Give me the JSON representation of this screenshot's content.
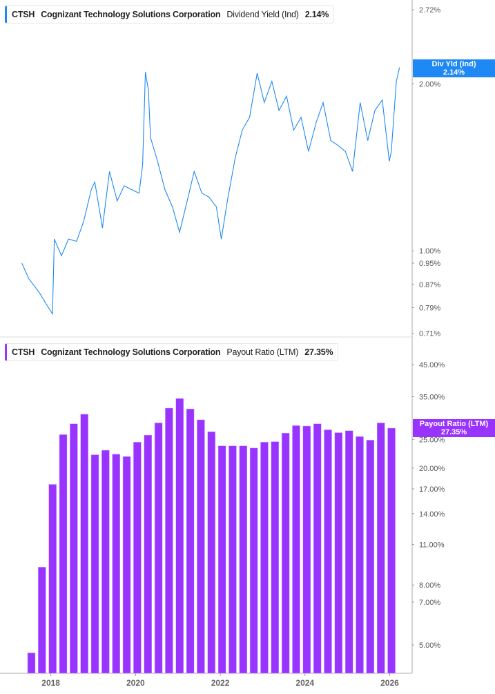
{
  "colors": {
    "yield_line": "#1e88f5",
    "payout_bar": "#9933ff",
    "axis": "#aaaaaa"
  },
  "chart_data": [
    {
      "type": "line",
      "legend": {
        "ticker": "CTSH",
        "company": "Cognizant Technology Solutions Corporation",
        "metric": "Dividend Yield (Ind)",
        "value": "2.14%"
      },
      "badge": {
        "label": "Div Yld (Ind)",
        "value": "2.14%"
      },
      "yscale": "log",
      "ylim": [
        0.66,
        2.74
      ],
      "yticks": [
        "2.72%",
        "2.00%",
        "1.00%",
        "0.95%",
        "0.87%",
        "0.79%",
        "0.71%"
      ],
      "ytick_values": [
        2.72,
        2.0,
        1.0,
        0.95,
        0.87,
        0.79,
        0.71
      ],
      "xlim": [
        2016.8,
        2026.53
      ],
      "points": [
        [
          "2017-04-25",
          0.95
        ],
        [
          "2017-06-25",
          0.89
        ],
        [
          "2017-09-25",
          0.84
        ],
        [
          "2017-11-25",
          0.8
        ],
        [
          "2018-01-15",
          0.77
        ],
        [
          "2018-02-01",
          1.05
        ],
        [
          "2018-04-01",
          0.98
        ],
        [
          "2018-06-01",
          1.05
        ],
        [
          "2018-08-10",
          1.04
        ],
        [
          "2018-10-10",
          1.13
        ],
        [
          "2018-12-15",
          1.29
        ],
        [
          "2019-01-15",
          1.33
        ],
        [
          "2019-03-20",
          1.1
        ],
        [
          "2019-05-20",
          1.39
        ],
        [
          "2019-07-25",
          1.23
        ],
        [
          "2019-09-25",
          1.31
        ],
        [
          "2019-11-25",
          1.29
        ],
        [
          "2020-02-01",
          1.27
        ],
        [
          "2020-03-01",
          1.43
        ],
        [
          "2020-03-25",
          2.1
        ],
        [
          "2020-04-20",
          1.95
        ],
        [
          "2020-05-08",
          1.6
        ],
        [
          "2020-07-08",
          1.45
        ],
        [
          "2020-09-10",
          1.29
        ],
        [
          "2020-11-15",
          1.2
        ],
        [
          "2021-01-15",
          1.08
        ],
        [
          "2021-03-20",
          1.23
        ],
        [
          "2021-05-20",
          1.39
        ],
        [
          "2021-07-25",
          1.27
        ],
        [
          "2021-09-25",
          1.25
        ],
        [
          "2021-11-28",
          1.2
        ],
        [
          "2022-01-10",
          1.05
        ],
        [
          "2022-03-01",
          1.23
        ],
        [
          "2022-05-08",
          1.47
        ],
        [
          "2022-07-08",
          1.65
        ],
        [
          "2022-09-10",
          1.74
        ],
        [
          "2022-11-15",
          2.09
        ],
        [
          "2023-01-15",
          1.85
        ],
        [
          "2023-03-20",
          2.02
        ],
        [
          "2023-05-20",
          1.79
        ],
        [
          "2023-07-25",
          1.9
        ],
        [
          "2023-09-25",
          1.65
        ],
        [
          "2023-11-28",
          1.74
        ],
        [
          "2024-02-01",
          1.51
        ],
        [
          "2024-04-05",
          1.7
        ],
        [
          "2024-06-05",
          1.85
        ],
        [
          "2024-08-10",
          1.58
        ],
        [
          "2024-10-10",
          1.55
        ],
        [
          "2024-12-15",
          1.51
        ],
        [
          "2025-02-15",
          1.39
        ],
        [
          "2025-04-20",
          1.85
        ],
        [
          "2025-06-25",
          1.58
        ],
        [
          "2025-08-25",
          1.79
        ],
        [
          "2025-10-28",
          1.87
        ],
        [
          "2025-12-28",
          1.45
        ],
        [
          "2026-01-15",
          1.51
        ],
        [
          "2026-02-28",
          2.02
        ],
        [
          "2026-03-25",
          2.14
        ]
      ]
    },
    {
      "type": "bar",
      "legend": {
        "ticker": "CTSH",
        "company": "Cognizant Technology Solutions Corporation",
        "metric": "Payout Ratio (LTM)",
        "value": "27.35%"
      },
      "badge": {
        "label": "Payout Ratio (LTM)",
        "value": "27.35%"
      },
      "yscale": "log",
      "ylim": [
        4.0,
        50
      ],
      "yticks": [
        "45.00%",
        "35.00%",
        "25.00%",
        "20.00%",
        "17.00%",
        "14.00%",
        "11.00%",
        "8.00%",
        "7.00%",
        "5.00%"
      ],
      "ytick_values": [
        45,
        35,
        25,
        20,
        17,
        14,
        11,
        8,
        7,
        5
      ],
      "xticks": [
        "2018",
        "2020",
        "2022",
        "2024",
        "2026"
      ],
      "xlim": [
        2016.8,
        2026.53
      ],
      "x": [
        "2017-07",
        "2017-10",
        "2018-01",
        "2018-04",
        "2018-07",
        "2018-10",
        "2019-01",
        "2019-04",
        "2019-07",
        "2019-10",
        "2020-01",
        "2020-04",
        "2020-07",
        "2020-10",
        "2021-01",
        "2021-04",
        "2021-07",
        "2021-10",
        "2022-01",
        "2022-04",
        "2022-07",
        "2022-10",
        "2023-01",
        "2023-04",
        "2023-07",
        "2023-10",
        "2024-01",
        "2024-04",
        "2024-07",
        "2024-10",
        "2025-01",
        "2025-04",
        "2025-07",
        "2025-10",
        "2026-01"
      ],
      "values": [
        4.7,
        9.2,
        17.6,
        26.0,
        28.3,
        30.5,
        22.2,
        23.0,
        22.3,
        21.9,
        24.5,
        25.9,
        28.5,
        32.0,
        34.5,
        31.8,
        29.2,
        26.6,
        23.8,
        23.8,
        23.8,
        23.4,
        24.5,
        24.6,
        26.3,
        27.9,
        27.8,
        28.3,
        27.0,
        26.4,
        26.8,
        25.6,
        24.9,
        28.5,
        27.35
      ]
    }
  ]
}
